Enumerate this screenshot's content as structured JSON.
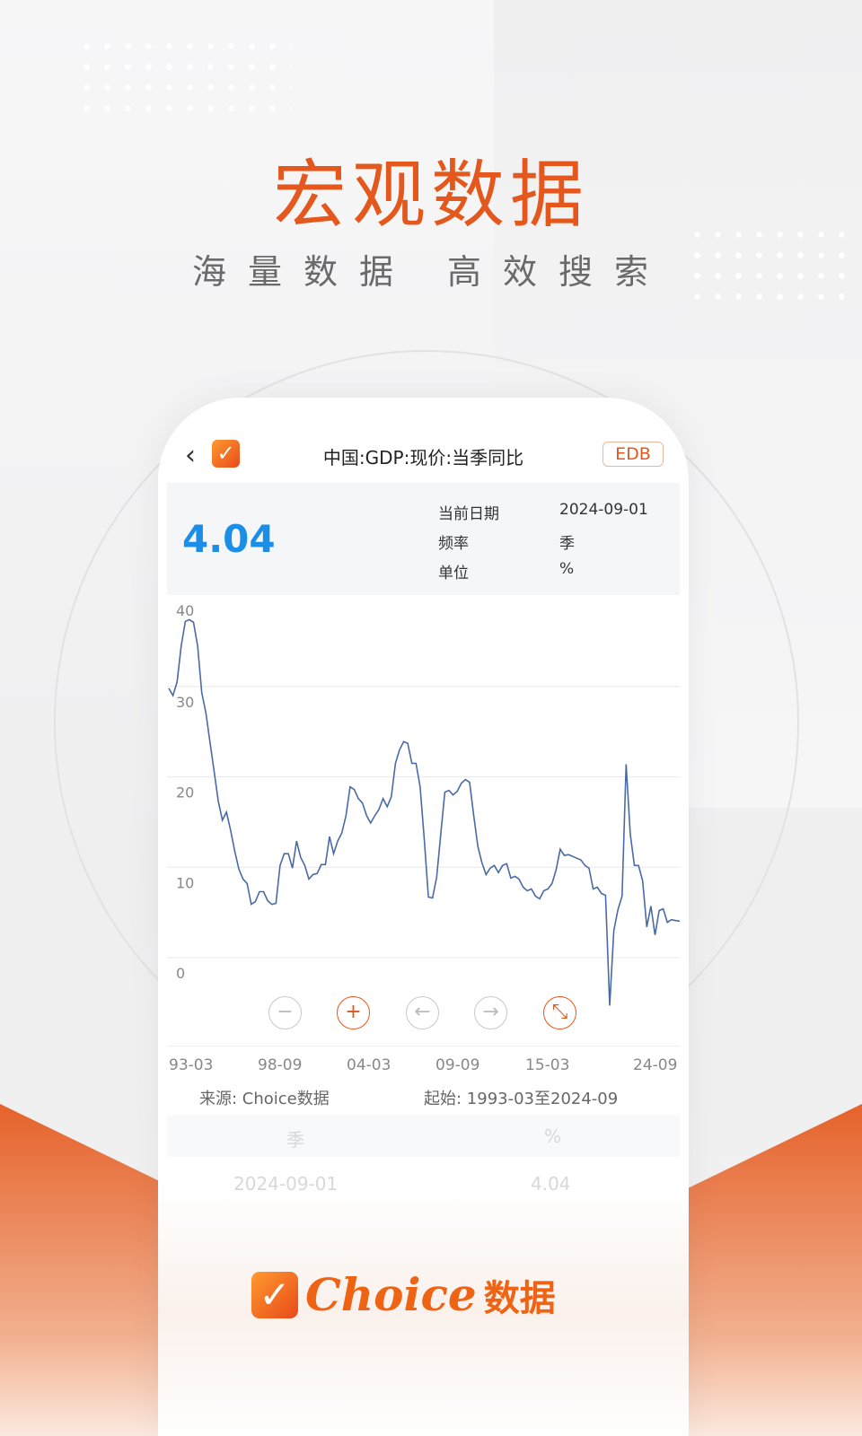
{
  "promo": {
    "headline": "宏观数据",
    "subline": "海量数据  高效搜索"
  },
  "header": {
    "back_icon": "chevron-left-icon",
    "title": "中国:GDP:现价:当季同比",
    "badge": "EDB"
  },
  "summary": {
    "value": "4.04",
    "value_color": "#1b8fe8",
    "date_label": "当前日期",
    "date": "2024-09-01",
    "freq_label": "频率",
    "freq": "季",
    "unit_label": "单位",
    "unit": "%"
  },
  "controls": [
    {
      "name": "zoom-out",
      "icon": "−",
      "active": false
    },
    {
      "name": "zoom-in",
      "icon": "+",
      "active": true
    },
    {
      "name": "pan-left",
      "icon": "←",
      "active": false
    },
    {
      "name": "pan-right",
      "icon": "→",
      "active": false
    },
    {
      "name": "fullscreen",
      "icon": "⤡",
      "active": true
    }
  ],
  "chart_data": {
    "type": "line",
    "x_start": "1993-03",
    "x_end": "2024-09",
    "frequency": "quarterly",
    "x_tick_labels": [
      "93-03",
      "98-09",
      "04-03",
      "09-09",
      "15-03",
      "24-09"
    ],
    "y_ticks": [
      0,
      10,
      20,
      30,
      40
    ],
    "ylim": [
      -6,
      40
    ],
    "grid": true,
    "line_color": "#4a6aa5",
    "values": [
      29.8,
      29.0,
      30.5,
      34.5,
      37.2,
      37.4,
      37.1,
      34.5,
      29.3,
      27.1,
      23.8,
      20.6,
      17.3,
      15.2,
      16.1,
      14.1,
      11.8,
      9.8,
      8.7,
      8.2,
      5.9,
      6.2,
      7.3,
      7.3,
      6.3,
      5.9,
      6.0,
      10.2,
      11.5,
      11.5,
      9.9,
      12.9,
      11.1,
      10.2,
      8.7,
      9.2,
      9.3,
      10.3,
      10.3,
      13.4,
      11.5,
      12.9,
      13.8,
      15.7,
      18.9,
      18.6,
      17.6,
      17.1,
      15.7,
      14.9,
      15.7,
      16.4,
      17.6,
      16.7,
      17.8,
      21.5,
      23.0,
      23.9,
      23.7,
      21.5,
      21.5,
      18.9,
      13.1,
      6.7,
      6.6,
      8.9,
      13.7,
      18.3,
      18.5,
      18.0,
      18.4,
      19.3,
      19.7,
      19.4,
      15.7,
      12.3,
      10.5,
      9.2,
      9.9,
      10.2,
      9.4,
      10.2,
      10.4,
      8.8,
      9.0,
      8.7,
      7.8,
      7.4,
      7.6,
      6.8,
      6.5,
      7.4,
      7.6,
      8.2,
      9.7,
      12.0,
      11.3,
      11.4,
      11.2,
      11.0,
      10.8,
      10.2,
      9.9,
      7.6,
      7.8,
      7.1,
      6.9,
      -5.3,
      3.0,
      5.3,
      6.8,
      21.4,
      13.7,
      10.2,
      10.2,
      8.5,
      3.4,
      5.7,
      2.5,
      5.2,
      5.4,
      3.9,
      4.2,
      4.1,
      4.04
    ]
  },
  "footer": {
    "source": "来源: Choice数据",
    "range": "起始: 1993-03至2024-09"
  },
  "table": {
    "headers": [
      "季",
      "%"
    ],
    "rows": [
      [
        "2024-09-01",
        "4.04"
      ]
    ]
  },
  "brand": {
    "logo_text": "Choice",
    "logo_cn": "数据",
    "accent": "#e4571d"
  }
}
